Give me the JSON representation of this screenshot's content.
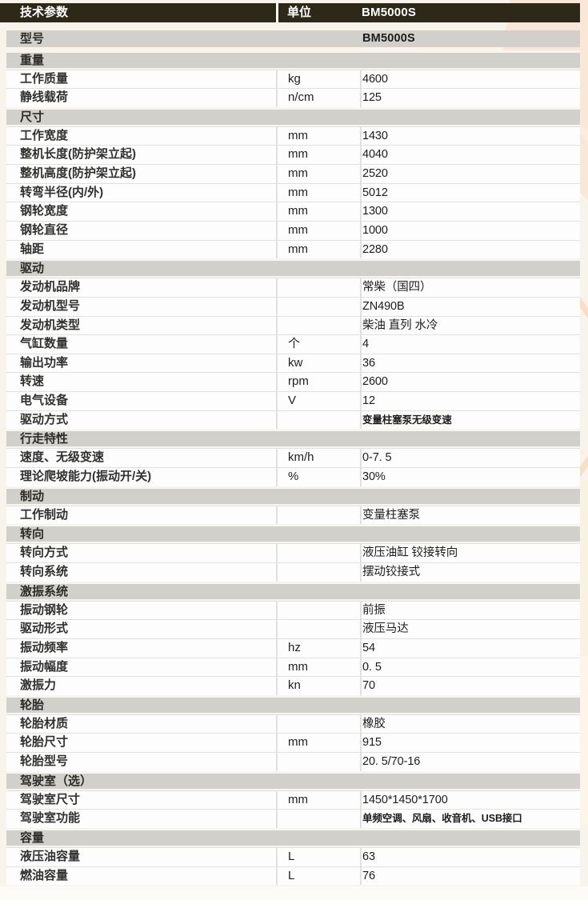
{
  "colors": {
    "header_bg": "#2d2817",
    "section_bg": "#d2d0cb",
    "row_bg": "#fdfdfd",
    "page_bg": "#f9f4eb",
    "peach_accent": "#f9e7d8"
  },
  "table": {
    "header": {
      "col_param": "技术参数",
      "col_unit": "单位",
      "col_value": "BM5000S"
    },
    "model_row": {
      "label": "型号",
      "value": "BM5000S"
    },
    "sections": [
      {
        "title": "重量",
        "rows": [
          {
            "label": "工作质量",
            "unit": "kg",
            "value": "4600"
          },
          {
            "label": "静线载荷",
            "unit": "n/cm",
            "value": "125"
          }
        ]
      },
      {
        "title": "尺寸",
        "rows": [
          {
            "label": "工作宽度",
            "unit": "mm",
            "value": "1430"
          },
          {
            "label": "整机长度(防护架立起)",
            "unit": "mm",
            "value": "4040"
          },
          {
            "label": "整机高度(防护架立起)",
            "unit": "mm",
            "value": "2520"
          },
          {
            "label": "转弯半径(内/外)",
            "unit": "mm",
            "value": "5012"
          },
          {
            "label": "钢轮宽度",
            "unit": "mm",
            "value": "1300"
          },
          {
            "label": "钢轮直径",
            "unit": "mm",
            "value": "1000"
          },
          {
            "label": "轴距",
            "unit": "mm",
            "value": "2280"
          }
        ]
      },
      {
        "title": "驱动",
        "rows": [
          {
            "label": "发动机品牌",
            "unit": "",
            "value": "常柴（国四）"
          },
          {
            "label": "发动机型号",
            "unit": "",
            "value": "ZN490B"
          },
          {
            "label": "发动机类型",
            "unit": "",
            "value": "柴油 直列 水冷"
          },
          {
            "label": "气缸数量",
            "unit": "个",
            "value": "4"
          },
          {
            "label": "输出功率",
            "unit": "kw",
            "value": "36"
          },
          {
            "label": "转速",
            "unit": "rpm",
            "value": "2600"
          },
          {
            "label": "电气设备",
            "unit": "V",
            "value": "12"
          },
          {
            "label": "驱动方式",
            "unit": "",
            "value": "变量柱塞泵无级变速",
            "small": true
          }
        ]
      },
      {
        "title": "行走特性",
        "rows": [
          {
            "label": "速度、无级变速",
            "unit": "km/h",
            "value": "0-7. 5"
          },
          {
            "label": "理论爬坡能力(振动开/关)",
            "unit": "%",
            "value": "30%"
          }
        ]
      },
      {
        "title": "制动",
        "rows": [
          {
            "label": "工作制动",
            "unit": "",
            "value": "变量柱塞泵"
          }
        ]
      },
      {
        "title": "转向",
        "rows": [
          {
            "label": "转向方式",
            "unit": "",
            "value": "液压油缸 铰接转向"
          },
          {
            "label": "转向系统",
            "unit": "",
            "value": "摆动铰接式"
          }
        ]
      },
      {
        "title": "激振系统",
        "rows": [
          {
            "label": "振动钢轮",
            "unit": "",
            "value": "前振"
          },
          {
            "label": "驱动形式",
            "unit": "",
            "value": "液压马达"
          },
          {
            "label": "振动频率",
            "unit": "hz",
            "value": "54"
          },
          {
            "label": "振动幅度",
            "unit": "mm",
            "value": "0. 5"
          },
          {
            "label": "激振力",
            "unit": "kn",
            "value": "70"
          }
        ]
      },
      {
        "title": "轮胎",
        "rows": [
          {
            "label": "轮胎材质",
            "unit": "",
            "value": "橡胶"
          },
          {
            "label": "轮胎尺寸",
            "unit": "mm",
            "value": "915"
          },
          {
            "label": "轮胎型号",
            "unit": "",
            "value": "20. 5/70-16"
          }
        ]
      },
      {
        "title": "驾驶室（选）",
        "rows": [
          {
            "label": "驾驶室尺寸",
            "unit": "mm",
            "value": "1450*1450*1700"
          },
          {
            "label": "驾驶室功能",
            "unit": "",
            "value": "单频空调、风扇、收音机、USB接口",
            "small": true
          }
        ]
      },
      {
        "title": "容量",
        "rows": [
          {
            "label": "液压油容量",
            "unit": "L",
            "value": "63"
          },
          {
            "label": "燃油容量",
            "unit": "L",
            "value": "76"
          }
        ]
      }
    ]
  }
}
